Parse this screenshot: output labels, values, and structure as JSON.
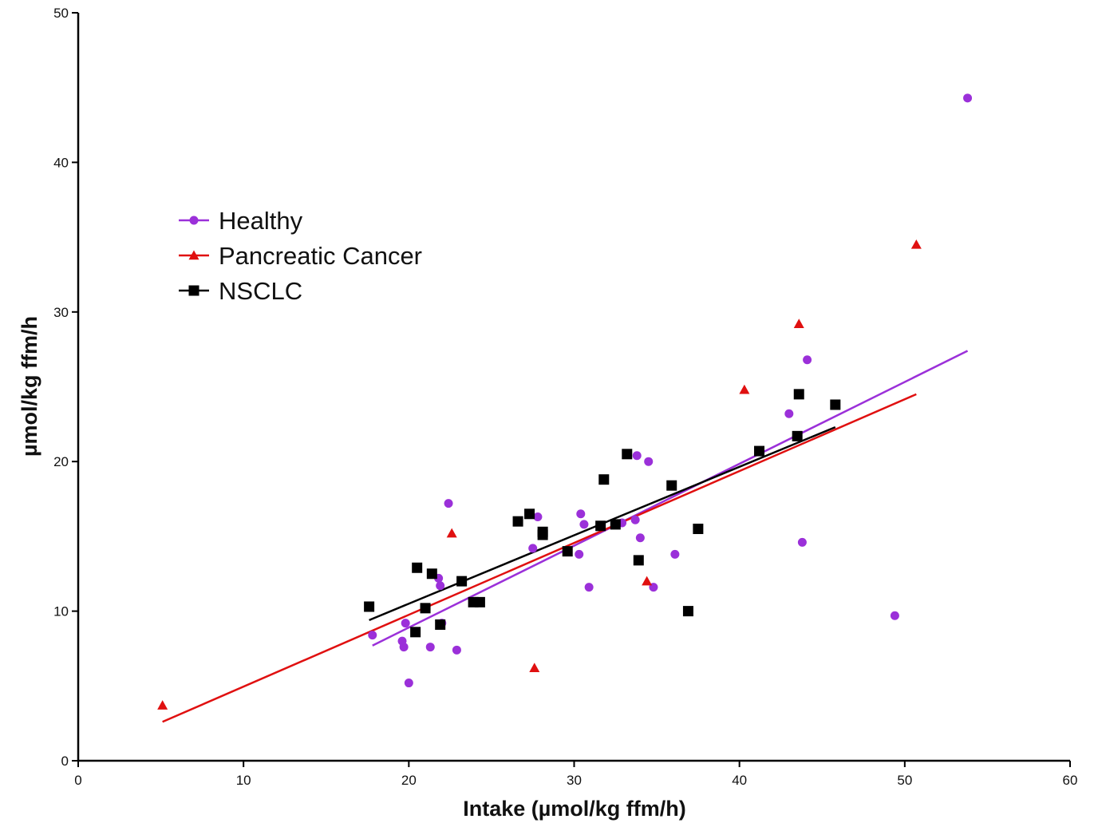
{
  "chart_data": {
    "type": "scatter",
    "title": "",
    "xlabel": "Intake (µmol/kg ffm/h)",
    "ylabel": "µmol/kg ffm/h",
    "xlim": [
      0,
      60
    ],
    "ylim": [
      0,
      50
    ],
    "xticks": [
      0,
      10,
      20,
      30,
      40,
      50,
      60
    ],
    "yticks": [
      0,
      10,
      20,
      30,
      40,
      50
    ],
    "grid": false,
    "legend_position": "upper-left",
    "series": [
      {
        "name": "Healthy",
        "color": "#9b30d9",
        "marker": "circle",
        "points": [
          [
            17.8,
            8.4
          ],
          [
            19.6,
            8.0
          ],
          [
            19.7,
            7.6
          ],
          [
            19.8,
            9.2
          ],
          [
            20.0,
            5.2
          ],
          [
            21.3,
            7.6
          ],
          [
            21.8,
            12.2
          ],
          [
            21.9,
            11.7
          ],
          [
            22.0,
            9.2
          ],
          [
            22.4,
            17.2
          ],
          [
            22.9,
            7.4
          ],
          [
            27.5,
            14.2
          ],
          [
            27.8,
            16.3
          ],
          [
            30.3,
            13.8
          ],
          [
            30.4,
            16.5
          ],
          [
            30.6,
            15.8
          ],
          [
            30.9,
            11.6
          ],
          [
            32.9,
            15.9
          ],
          [
            33.7,
            16.1
          ],
          [
            33.8,
            20.4
          ],
          [
            34.0,
            14.9
          ],
          [
            34.5,
            20.0
          ],
          [
            34.8,
            11.6
          ],
          [
            36.1,
            13.8
          ],
          [
            43.0,
            23.2
          ],
          [
            43.8,
            14.6
          ],
          [
            44.1,
            26.8
          ],
          [
            49.4,
            9.7
          ],
          [
            53.8,
            44.3
          ]
        ],
        "fit": [
          [
            17.8,
            7.7
          ],
          [
            53.8,
            27.4
          ]
        ]
      },
      {
        "name": "Pancreatic Cancer",
        "color": "#e01010",
        "marker": "triangle",
        "points": [
          [
            5.1,
            3.7
          ],
          [
            22.6,
            15.2
          ],
          [
            27.6,
            6.2
          ],
          [
            34.4,
            12.0
          ],
          [
            40.3,
            24.8
          ],
          [
            43.6,
            29.2
          ],
          [
            50.7,
            34.5
          ]
        ],
        "fit": [
          [
            5.1,
            2.6
          ],
          [
            50.7,
            24.5
          ]
        ]
      },
      {
        "name": "NSCLC",
        "color": "#000000",
        "marker": "square",
        "points": [
          [
            17.6,
            10.3
          ],
          [
            20.4,
            8.6
          ],
          [
            20.5,
            12.9
          ],
          [
            21.0,
            10.2
          ],
          [
            21.4,
            12.5
          ],
          [
            21.9,
            9.1
          ],
          [
            23.2,
            12.0
          ],
          [
            23.9,
            10.6
          ],
          [
            24.3,
            10.6
          ],
          [
            26.6,
            16.0
          ],
          [
            27.3,
            16.5
          ],
          [
            28.1,
            15.1
          ],
          [
            28.1,
            15.3
          ],
          [
            29.6,
            14.0
          ],
          [
            31.6,
            15.7
          ],
          [
            31.8,
            18.8
          ],
          [
            32.5,
            15.8
          ],
          [
            33.2,
            20.5
          ],
          [
            33.9,
            13.4
          ],
          [
            35.9,
            18.4
          ],
          [
            36.9,
            10.0
          ],
          [
            37.5,
            15.5
          ],
          [
            41.2,
            20.7
          ],
          [
            43.5,
            21.7
          ],
          [
            43.6,
            24.5
          ],
          [
            45.8,
            23.8
          ]
        ],
        "fit": [
          [
            17.6,
            9.4
          ],
          [
            45.8,
            22.3
          ]
        ]
      }
    ]
  }
}
